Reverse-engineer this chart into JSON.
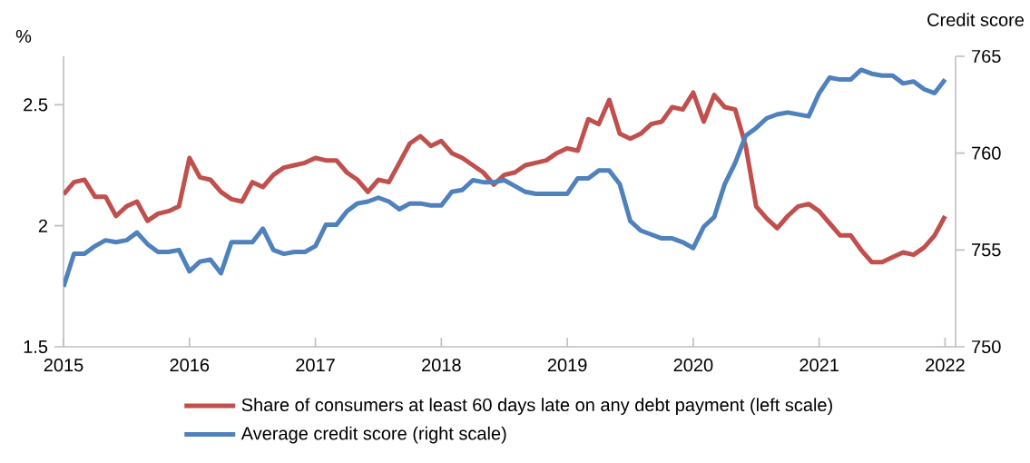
{
  "chart_data": {
    "type": "line",
    "ylabel": "%",
    "y2label": "Credit score",
    "x": [
      "2015-01",
      "2015-02",
      "2015-03",
      "2015-04",
      "2015-05",
      "2015-06",
      "2015-07",
      "2015-08",
      "2015-09",
      "2015-10",
      "2015-11",
      "2015-12",
      "2016-01",
      "2016-02",
      "2016-03",
      "2016-04",
      "2016-05",
      "2016-06",
      "2016-07",
      "2016-08",
      "2016-09",
      "2016-10",
      "2016-11",
      "2016-12",
      "2017-01",
      "2017-02",
      "2017-03",
      "2017-04",
      "2017-05",
      "2017-06",
      "2017-07",
      "2017-08",
      "2017-09",
      "2017-10",
      "2017-11",
      "2017-12",
      "2018-01",
      "2018-02",
      "2018-03",
      "2018-04",
      "2018-05",
      "2018-06",
      "2018-07",
      "2018-08",
      "2018-09",
      "2018-10",
      "2018-11",
      "2018-12",
      "2019-01",
      "2019-02",
      "2019-03",
      "2019-04",
      "2019-05",
      "2019-06",
      "2019-07",
      "2019-08",
      "2019-09",
      "2019-10",
      "2019-11",
      "2019-12",
      "2020-01",
      "2020-02",
      "2020-03",
      "2020-04",
      "2020-05",
      "2020-06",
      "2020-07",
      "2020-08",
      "2020-09",
      "2020-10",
      "2020-11",
      "2020-12",
      "2021-01",
      "2021-02",
      "2021-03",
      "2021-04",
      "2021-05",
      "2021-06",
      "2021-07",
      "2021-08",
      "2021-09",
      "2021-10",
      "2021-11",
      "2021-12",
      "2022-01"
    ],
    "series": [
      {
        "name": "Share of consumers at least 60 days late on any debt payment (left scale)",
        "color": "#c0504d",
        "axis": "y",
        "values": [
          2.13,
          2.18,
          2.19,
          2.12,
          2.12,
          2.04,
          2.08,
          2.1,
          2.02,
          2.05,
          2.06,
          2.08,
          2.28,
          2.2,
          2.19,
          2.14,
          2.11,
          2.1,
          2.18,
          2.16,
          2.21,
          2.24,
          2.25,
          2.26,
          2.28,
          2.27,
          2.27,
          2.22,
          2.19,
          2.14,
          2.19,
          2.18,
          2.26,
          2.34,
          2.37,
          2.33,
          2.35,
          2.3,
          2.28,
          2.25,
          2.22,
          2.17,
          2.21,
          2.22,
          2.25,
          2.26,
          2.27,
          2.3,
          2.32,
          2.31,
          2.44,
          2.42,
          2.52,
          2.38,
          2.36,
          2.38,
          2.42,
          2.43,
          2.49,
          2.48,
          2.55,
          2.43,
          2.54,
          2.49,
          2.48,
          2.33,
          2.08,
          2.03,
          1.99,
          2.04,
          2.08,
          2.09,
          2.06,
          2.01,
          1.96,
          1.96,
          1.9,
          1.85,
          1.85,
          1.87,
          1.89,
          1.88,
          1.91,
          1.96,
          2.04
        ]
      },
      {
        "name": "Average credit score (right scale)",
        "color": "#4f81bd",
        "axis": "y2",
        "values": [
          753.1,
          754.8,
          754.8,
          755.2,
          755.5,
          755.4,
          755.5,
          755.9,
          755.3,
          754.9,
          754.9,
          755.0,
          753.9,
          754.4,
          754.5,
          753.8,
          755.4,
          755.4,
          755.4,
          756.1,
          755.0,
          754.8,
          754.9,
          754.9,
          755.2,
          756.3,
          756.3,
          757.0,
          757.4,
          757.5,
          757.7,
          757.5,
          757.1,
          757.4,
          757.4,
          757.3,
          757.3,
          758.0,
          758.1,
          758.6,
          758.5,
          758.5,
          758.6,
          758.3,
          758.0,
          757.9,
          757.9,
          757.9,
          757.9,
          758.7,
          758.7,
          759.1,
          759.1,
          758.4,
          756.5,
          756.0,
          755.8,
          755.6,
          755.6,
          755.4,
          755.1,
          756.2,
          756.7,
          758.4,
          759.5,
          760.9,
          761.3,
          761.8,
          762.0,
          762.1,
          762.0,
          761.9,
          763.1,
          763.9,
          763.8,
          763.8,
          764.3,
          764.1,
          764.0,
          764.0,
          763.6,
          763.7,
          763.3,
          763.1,
          763.8
        ]
      }
    ],
    "xlim": [
      "2015-01",
      "2022-02"
    ],
    "xticks": [
      "2015",
      "2016",
      "2017",
      "2018",
      "2019",
      "2020",
      "2021",
      "2022"
    ],
    "ylim": [
      1.5,
      2.7
    ],
    "yticks": [
      1.5,
      2,
      2.5
    ],
    "y2lim": [
      750,
      765
    ],
    "y2ticks": [
      750,
      755,
      760,
      765
    ],
    "legend": "bottom",
    "marker": "none",
    "line_style": "solid"
  }
}
